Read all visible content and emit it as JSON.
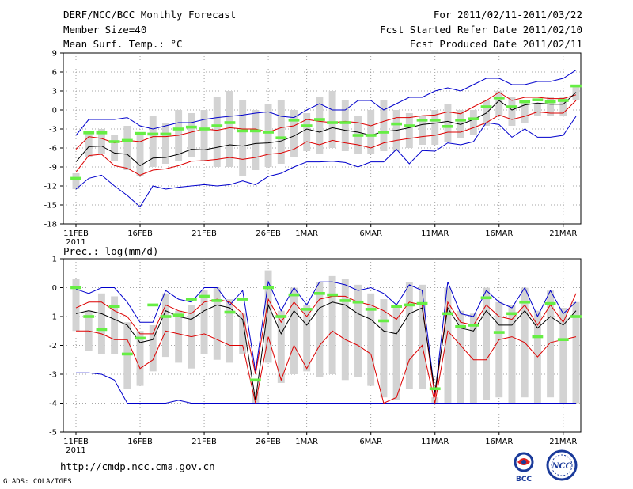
{
  "header": {
    "title": "DERF/NCC/BCC Monthly Forecast",
    "member_size": "Member Size=40",
    "variable": "Mean Surf. Temp.: °C",
    "period": "For 2011/02/11-2011/03/22",
    "start_date": "Fcst Started Refer Date 2011/02/10",
    "produced_date": "Fcst Produced Date 2011/02/11"
  },
  "footer": {
    "url": "http://cmdp.ncc.cma.gov.cn",
    "credit": "GrADS: COLA/IGES",
    "logo_bcc": "BCC",
    "logo_ncc": "NCC"
  },
  "colors": {
    "min_max": "#0000cc",
    "spread": "#dd0000",
    "mean": "#000000",
    "box": "#d3d3d3",
    "member_bar": "#66ee44"
  },
  "chart_data": [
    {
      "type": "line",
      "title": "Mean Surf. Temp.: °C",
      "ylim": [
        -18,
        9
      ],
      "yticks": [
        9,
        6,
        3,
        0,
        -3,
        -6,
        -9,
        -12,
        -15,
        -18
      ],
      "xlabels": [
        "11FEB",
        "16FEB",
        "21FEB",
        "26FEB",
        "1MAR",
        "6MAR",
        "11MAR",
        "16MAR",
        "21MAR"
      ],
      "xlabel_days": [
        0,
        5,
        10,
        15,
        18,
        23,
        28,
        33,
        38
      ],
      "year_label": "2011",
      "days": 40,
      "series": [
        {
          "name": "max",
          "values": [
            -4,
            -1.5,
            -1.5,
            -1.5,
            -1.2,
            -2.5,
            -3,
            -2.5,
            -2,
            -2,
            -1.5,
            -1.2,
            -1,
            -0.8,
            -0.5,
            -0.3,
            -1,
            -1.2,
            0,
            1,
            0,
            0,
            1.5,
            1.5,
            0,
            1,
            2,
            2,
            3,
            3.5,
            3,
            4,
            5,
            5,
            4,
            4,
            4.5,
            4.5,
            5,
            6.3
          ]
        },
        {
          "name": "upper",
          "values": [
            -6.2,
            -4.2,
            -4.5,
            -5.2,
            -4.8,
            -5,
            -4.2,
            -4.2,
            -4,
            -3.5,
            -3,
            -3.2,
            -2.8,
            -3,
            -3,
            -3.5,
            -2.8,
            -2.5,
            -1.5,
            -1.8,
            -2,
            -1.8,
            -2,
            -2.5,
            -1.8,
            -1.2,
            -1.2,
            -0.9,
            -0.8,
            -0.3,
            -0.6,
            0.5,
            1.5,
            2.8,
            1.5,
            2,
            2,
            1.8,
            1.8,
            2.4
          ]
        },
        {
          "name": "mean",
          "values": [
            -8.2,
            -5.8,
            -5.7,
            -6.8,
            -7,
            -8.8,
            -7.6,
            -7.5,
            -7,
            -6.2,
            -6.3,
            -5.9,
            -5.5,
            -5.7,
            -5.3,
            -5.2,
            -4.9,
            -4.1,
            -3,
            -3.5,
            -2.8,
            -3.2,
            -3.5,
            -4,
            -3.4,
            -3.2,
            -2.8,
            -2.3,
            -2.1,
            -1.8,
            -2.3,
            -1.5,
            -0.5,
            1.5,
            0,
            0.8,
            1.1,
            0.9,
            0.9,
            2.8
          ]
        },
        {
          "name": "lower",
          "values": [
            -9.8,
            -7.2,
            -7,
            -8.8,
            -9.2,
            -10.3,
            -9.5,
            -9.3,
            -8.8,
            -8.1,
            -8,
            -7.8,
            -7.5,
            -7.8,
            -7.5,
            -7,
            -6.8,
            -6.2,
            -5,
            -5.5,
            -4.8,
            -5.2,
            -5.5,
            -6,
            -5.2,
            -4.8,
            -4.5,
            -4.2,
            -4,
            -3.5,
            -3.5,
            -2.8,
            -2,
            -0.8,
            -1.5,
            -1,
            -0.3,
            -0.5,
            -0.5,
            1.5
          ]
        },
        {
          "name": "min",
          "values": [
            -12.5,
            -10.8,
            -10.3,
            -12,
            -13.5,
            -15.3,
            -12,
            -12.5,
            -12.2,
            -12,
            -11.8,
            -12,
            -11.8,
            -11.2,
            -11.8,
            -10.5,
            -10,
            -9,
            -8.2,
            -8.2,
            -8.1,
            -8.3,
            -9,
            -8.2,
            -8.2,
            -6.2,
            -8.5,
            -6.4,
            -6.5,
            -5.2,
            -5.5,
            -5,
            -2,
            -2.3,
            -4.3,
            -3,
            -4.3,
            -4.3,
            -4,
            -1
          ]
        },
        {
          "name": "box_top",
          "values": [
            -10,
            -3.5,
            -3,
            -4,
            -2.5,
            -3.5,
            -1,
            -2,
            0,
            -0.5,
            0,
            2,
            3,
            1.5,
            0,
            1,
            1.5,
            0,
            -0.5,
            2,
            3,
            1.5,
            -1,
            0,
            1.5,
            0,
            -0.5,
            -1,
            0,
            1,
            0,
            0,
            1.5,
            3,
            2,
            1.5,
            1,
            2,
            2,
            4
          ]
        },
        {
          "name": "box_bottom",
          "values": [
            -12.5,
            -7.5,
            -7,
            -8,
            -9.5,
            -10.5,
            -9,
            -8.5,
            -8,
            -7.5,
            -8,
            -9,
            -9,
            -10.5,
            -9.5,
            -9,
            -8.5,
            -7.5,
            -6.5,
            -7,
            -6,
            -6.5,
            -7,
            -7,
            -6.5,
            -6.5,
            -6,
            -5.5,
            -5.5,
            -5,
            -4.5,
            -4,
            -2.5,
            -1,
            -2.5,
            -2,
            -1,
            -1,
            -1,
            1.5
          ]
        },
        {
          "name": "member",
          "values": [
            -10.8,
            -3.6,
            -3.6,
            -5,
            -4.8,
            -3.7,
            -3.8,
            -3.8,
            -3,
            -2.7,
            -3,
            -2.5,
            -2,
            -3.3,
            -3.3,
            -3.5,
            -4.4,
            -1.6,
            -2.5,
            -1.5,
            -2,
            -2,
            -4,
            -4,
            -3.5,
            -2.2,
            -2.5,
            -1.6,
            -1.6,
            -2.6,
            -1.6,
            -1.4,
            0.5,
            1.9,
            0.5,
            1.3,
            1.6,
            1.3,
            1.5,
            3.8
          ]
        }
      ]
    },
    {
      "type": "line",
      "title": "Prec.: log(mm/d)",
      "ylim": [
        -5,
        1
      ],
      "yticks": [
        1,
        0,
        -1,
        -2,
        -3,
        -4,
        -5
      ],
      "xlabels": [
        "11FEB",
        "16FEB",
        "21FEB",
        "26FEB",
        "1MAR",
        "6MAR",
        "11MAR",
        "16MAR",
        "21MAR"
      ],
      "xlabel_days": [
        0,
        5,
        10,
        15,
        18,
        23,
        28,
        33,
        38
      ],
      "year_label": "2011",
      "days": 40,
      "series": [
        {
          "name": "max",
          "values": [
            -0.05,
            -0.2,
            0,
            0,
            -0.5,
            -1.2,
            -1.2,
            -0.1,
            -0.4,
            -0.5,
            0,
            0,
            -0.6,
            -0.1,
            -2.9,
            0.2,
            -0.8,
            0,
            -0.6,
            0.2,
            0.2,
            0.1,
            -0.1,
            0,
            -0.2,
            -0.6,
            0.1,
            -0.1,
            -3.7,
            0.2,
            -0.9,
            -1,
            -0.1,
            -0.5,
            -0.7,
            0,
            -1,
            -0.1,
            -0.9,
            -0.5
          ]
        },
        {
          "name": "upper",
          "values": [
            -0.7,
            -0.5,
            -0.5,
            -0.8,
            -1,
            -1.6,
            -1.6,
            -0.6,
            -0.8,
            -0.9,
            -0.5,
            -0.4,
            -0.5,
            -0.9,
            -3,
            -0.4,
            -1.2,
            -0.5,
            -1,
            -0.4,
            -0.3,
            -0.3,
            -0.5,
            -0.6,
            -0.8,
            -1.1,
            -0.5,
            -0.6,
            -3.8,
            -0.5,
            -1.2,
            -1.3,
            -0.6,
            -1,
            -1.1,
            -0.6,
            -1.3,
            -0.6,
            -1.2,
            -0.2
          ]
        },
        {
          "name": "mean",
          "values": [
            -0.9,
            -0.8,
            -0.9,
            -1.1,
            -1.3,
            -1.9,
            -1.8,
            -0.8,
            -1,
            -1.1,
            -0.8,
            -0.6,
            -0.7,
            -1.1,
            -3.9,
            -0.6,
            -1.6,
            -0.8,
            -1.3,
            -0.7,
            -0.5,
            -0.6,
            -0.9,
            -1.1,
            -1.5,
            -1.6,
            -0.9,
            -0.7,
            -3.6,
            -0.7,
            -1.4,
            -1.5,
            -0.8,
            -1.3,
            -1.3,
            -0.8,
            -1.4,
            -1,
            -1.3,
            -0.8
          ]
        },
        {
          "name": "lower",
          "values": [
            -1.5,
            -1.5,
            -1.6,
            -1.8,
            -1.8,
            -2.8,
            -2.5,
            -1.5,
            -1.6,
            -1.7,
            -1.6,
            -1.8,
            -2,
            -2,
            -4,
            -1.7,
            -3.2,
            -2,
            -2.8,
            -2,
            -1.5,
            -1.8,
            -2,
            -2.3,
            -4,
            -3.8,
            -2.5,
            -2,
            -4,
            -1.5,
            -2,
            -2.5,
            -2.5,
            -1.8,
            -1.7,
            -1.9,
            -2.4,
            -1.9,
            -1.8,
            -1.7
          ]
        },
        {
          "name": "min",
          "values": [
            -2.95,
            -2.95,
            -3,
            -3.2,
            -4,
            -4,
            -4,
            -4,
            -3.9,
            -4,
            -4,
            -4,
            -4,
            -4,
            -4,
            -4,
            -4,
            -4,
            -4,
            -4,
            -4,
            -4,
            -4,
            -4,
            -4,
            -4,
            -4,
            -4,
            -4,
            -4,
            -4,
            -4,
            -4,
            -4,
            -4,
            -4,
            -4,
            -4,
            -4,
            -4
          ]
        },
        {
          "name": "box_top",
          "values": [
            0.3,
            -0.8,
            -0.2,
            -0.3,
            -1.2,
            -1.5,
            -1.3,
            -0.2,
            -0.8,
            -0.6,
            -0.1,
            0,
            -0.4,
            -0.9,
            -3.6,
            0.6,
            -0.8,
            0,
            -0.6,
            0.2,
            0.4,
            0.3,
            0.1,
            -0.2,
            -0.4,
            -0.7,
            0.2,
            0.1,
            -3.8,
            0,
            -0.8,
            -0.9,
            0,
            -0.5,
            -0.6,
            0,
            -0.8,
            -0.1,
            -0.7,
            -0.5
          ]
        },
        {
          "name": "box_bottom",
          "values": [
            -1.5,
            -2.2,
            -2.3,
            -2.3,
            -3.5,
            -3.4,
            -2.9,
            -2.4,
            -2.6,
            -2.8,
            -2.3,
            -2.5,
            -2.6,
            -2.3,
            -4,
            -2.6,
            -3.3,
            -3,
            -2.9,
            -3.1,
            -3,
            -3.2,
            -3.1,
            -3.4,
            -3.8,
            -3.9,
            -3.5,
            -3.5,
            -4,
            -4,
            -4,
            -4,
            -3.9,
            -3.8,
            -4,
            -3.8,
            -4,
            -3.8,
            -4,
            -4
          ]
        },
        {
          "name": "member",
          "values": [
            0,
            -1,
            -1.45,
            -0.65,
            -2.3,
            -1.75,
            -0.6,
            -1,
            -0.95,
            -0.4,
            -0.3,
            -0.45,
            -0.85,
            -0.4,
            -3.2,
            0,
            -1,
            -0.25,
            -0.75,
            -0.2,
            -0.25,
            -0.45,
            -0.5,
            -0.75,
            -1.15,
            -0.65,
            -0.6,
            -0.55,
            -3.5,
            -0.9,
            -1.35,
            -1.3,
            -0.35,
            -1.55,
            -0.9,
            -0.5,
            -1.7,
            -0.55,
            -1.8,
            -1
          ]
        }
      ]
    }
  ]
}
